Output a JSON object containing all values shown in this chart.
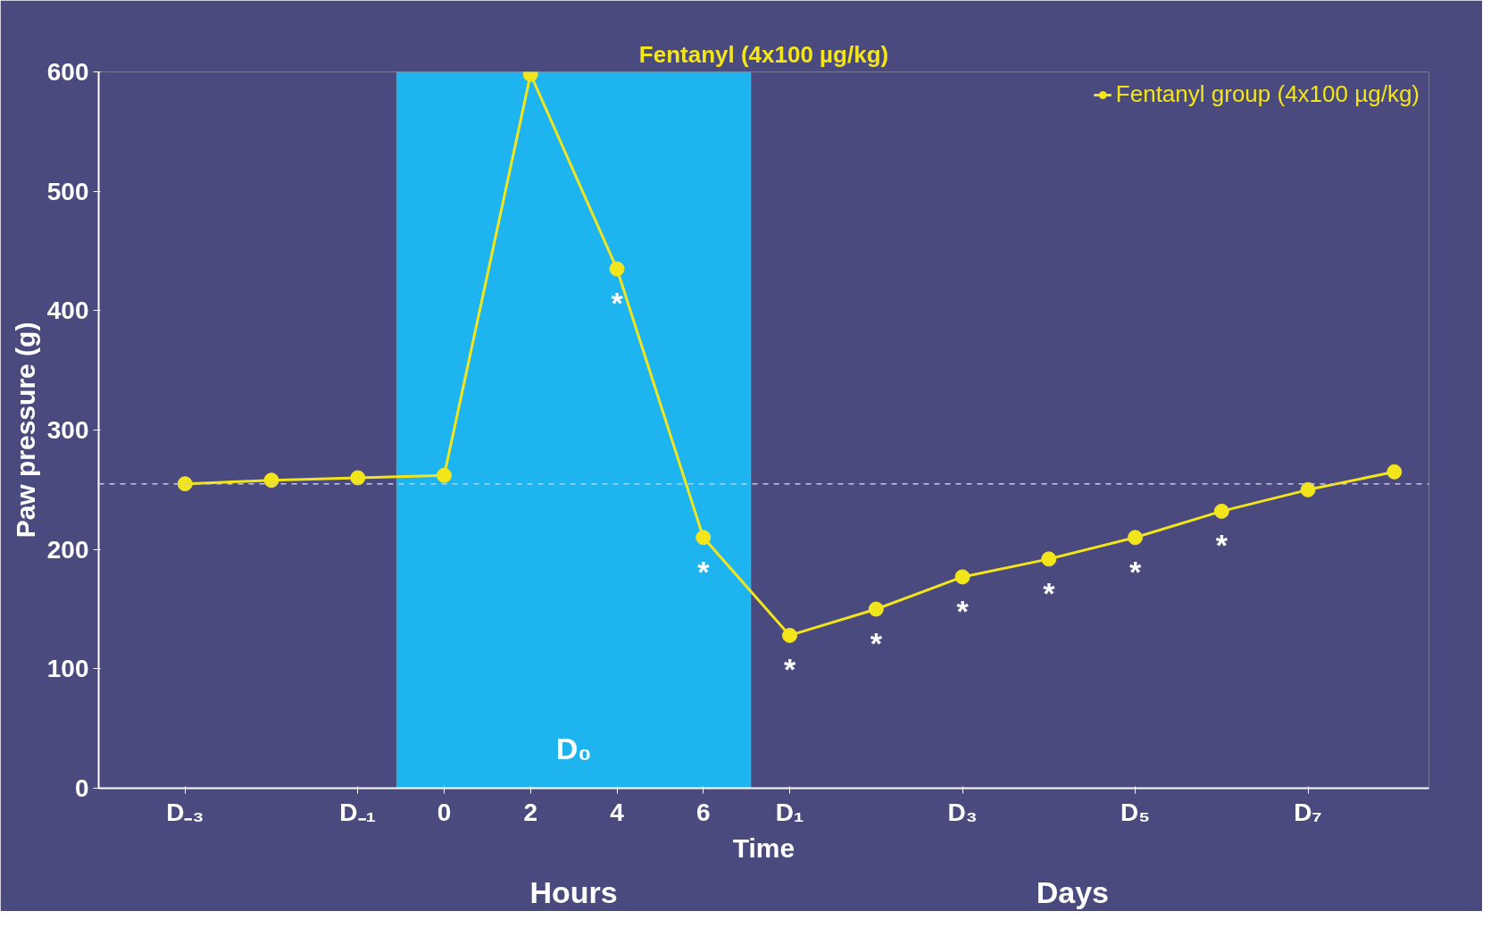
{
  "chart_data": {
    "type": "line",
    "title": "Fentanyl (4x100 µg/kg)",
    "xlabel": "Time",
    "ylabel": "Paw pressure (g)",
    "categories": [
      "D₋₃",
      null,
      "D₋₁",
      "0",
      "2",
      "4",
      "6",
      "D₁",
      null,
      "D₃",
      null,
      "D₅",
      null,
      "D₇",
      null
    ],
    "series": [
      {
        "name": "Fentanyl group (4x100 µg/kg)",
        "color": "#f2e51c",
        "values": [
          255,
          258,
          260,
          262,
          598,
          435,
          210,
          128,
          150,
          177,
          192,
          210,
          232,
          250,
          265
        ],
        "value_labels": [
          null,
          null,
          null,
          null,
          null,
          "*",
          "*",
          "*",
          "*",
          "*",
          "*",
          "*",
          "*",
          null,
          null
        ]
      }
    ],
    "ylim": [
      0,
      600
    ],
    "yticks": [
      0,
      100,
      200,
      300,
      400,
      500,
      600
    ],
    "bands": [
      {
        "axis": "x",
        "from": "0",
        "to": "6",
        "color": "#1eb4f0"
      }
    ],
    "ref_lines": [
      {
        "axis": "y",
        "value": 255,
        "color": "#c8c8dc",
        "line_style": "dashed"
      }
    ],
    "annotations": [
      "D₀",
      "Hours",
      "Days"
    ],
    "legend": "top right",
    "marker": "circle",
    "line_style": "solid",
    "grid": false
  }
}
